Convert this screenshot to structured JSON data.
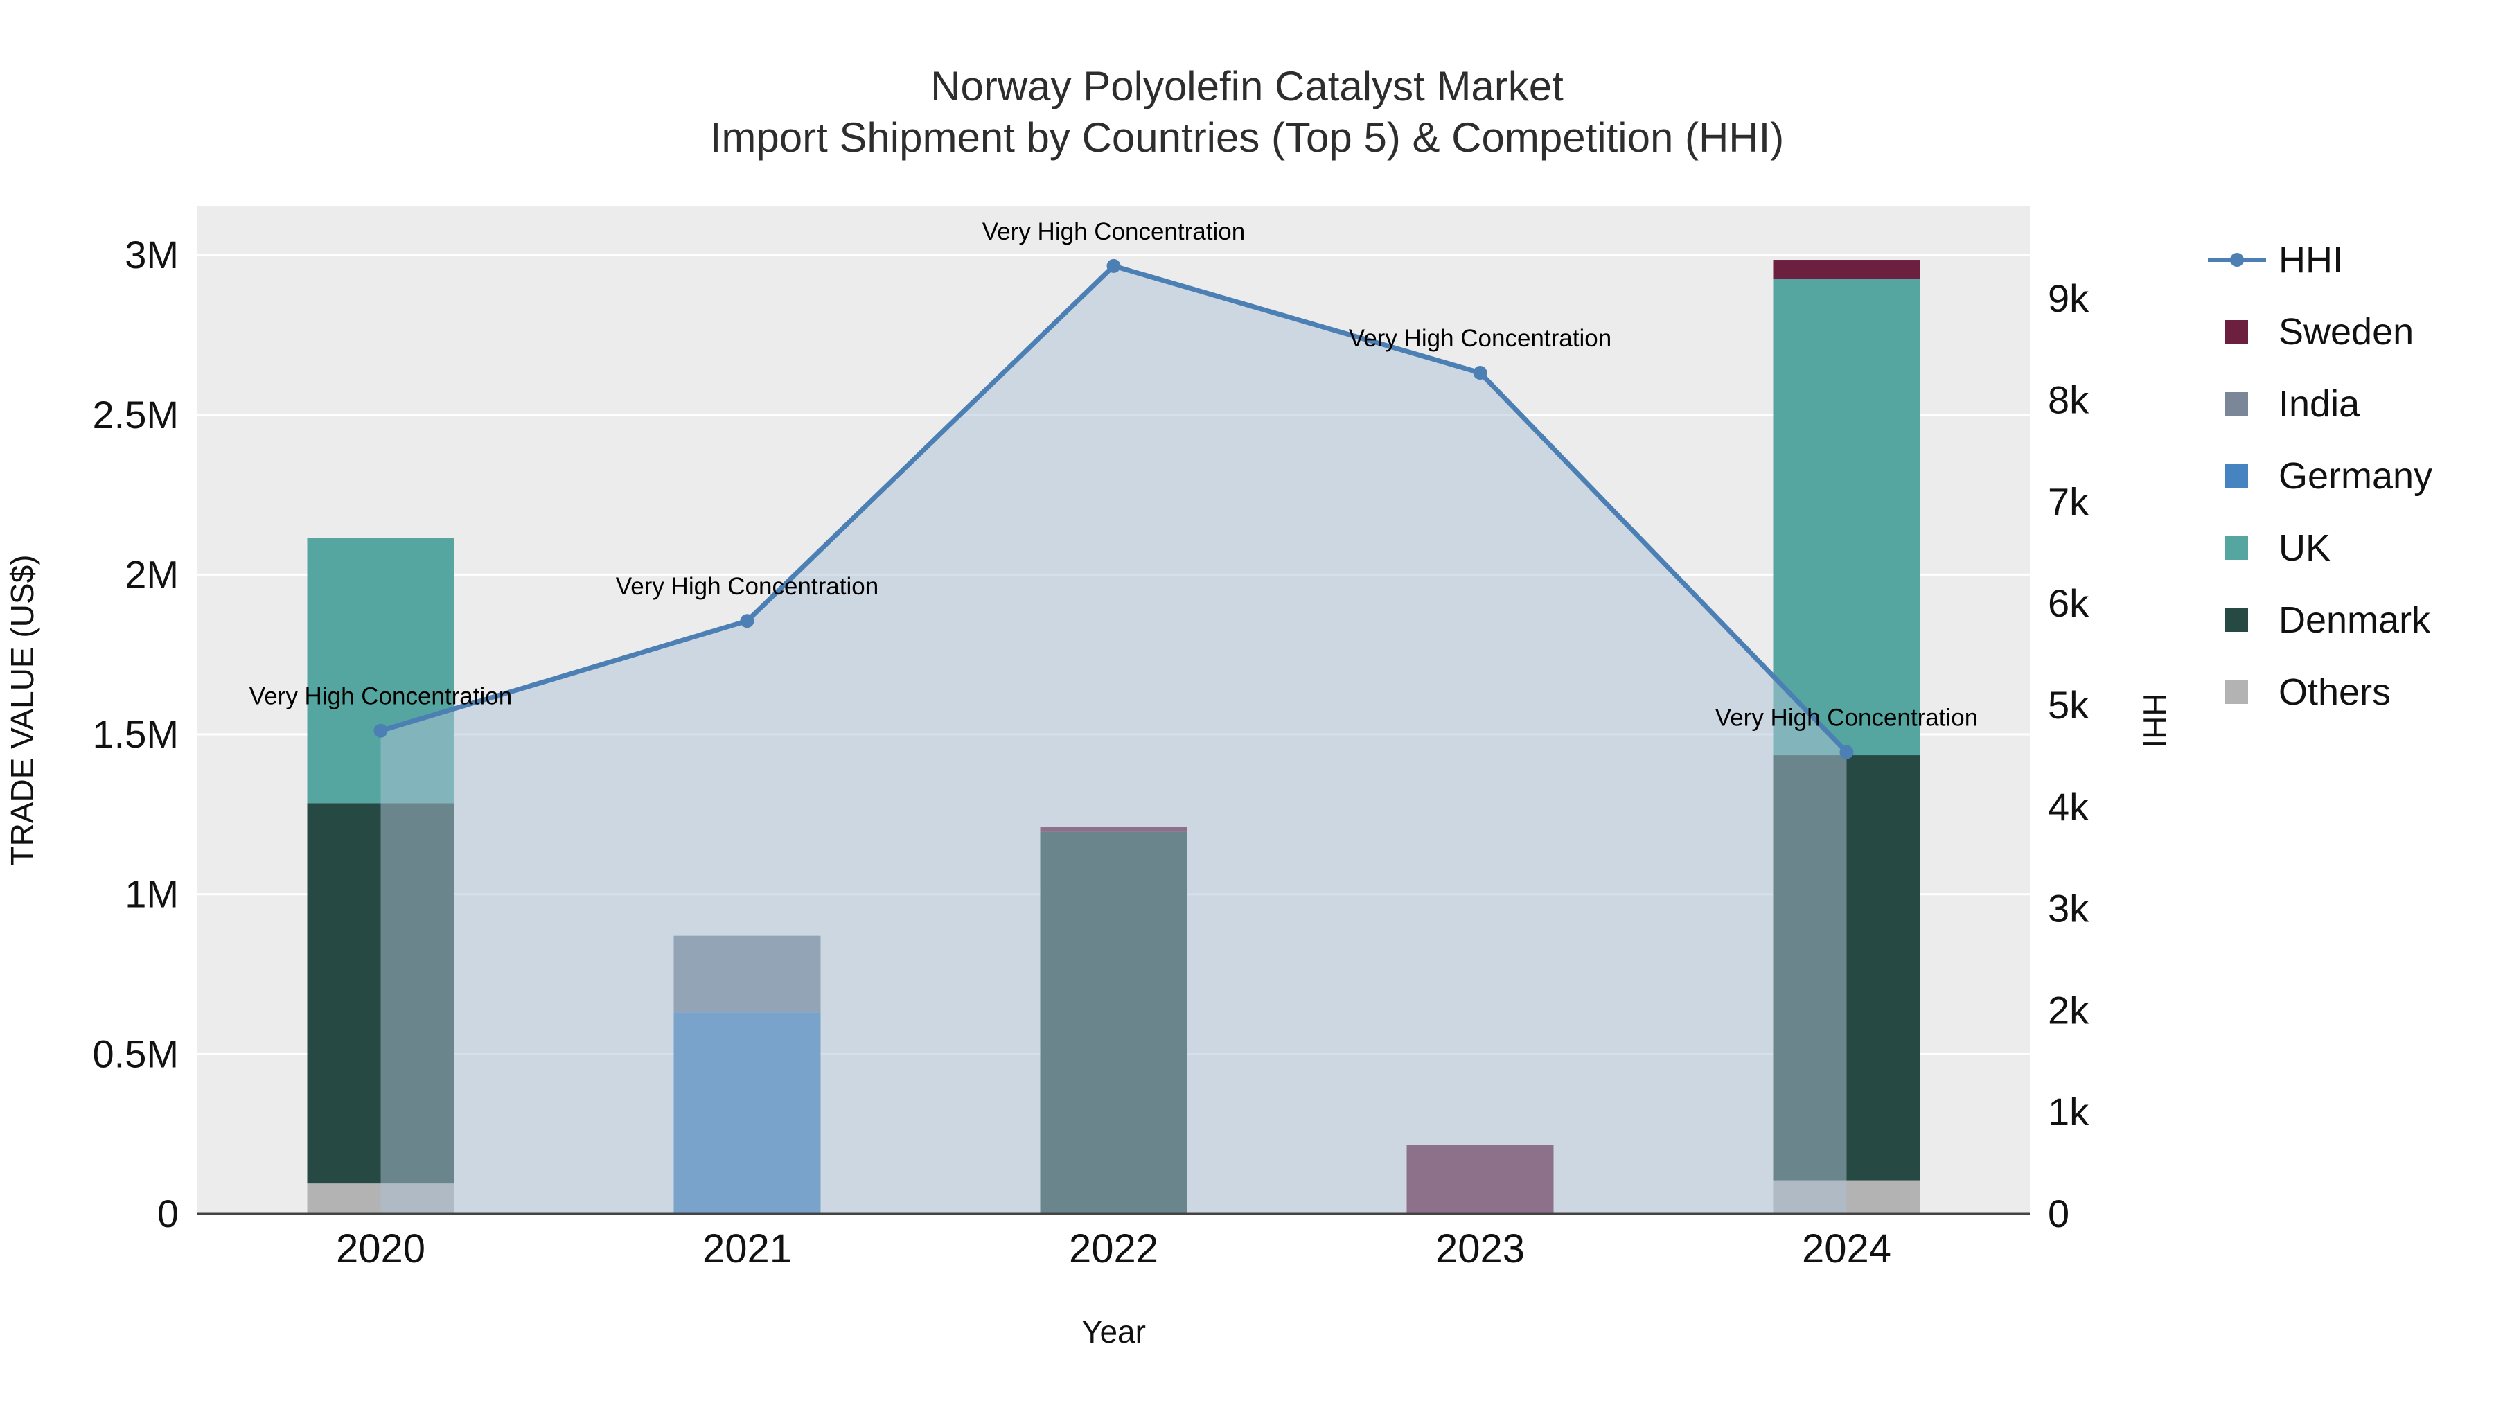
{
  "title": {
    "line1": "Norway Polyolefin Catalyst Market",
    "line2": "Import Shipment by Countries (Top 5) & Competition (HHI)"
  },
  "chart_data": {
    "type": "bar",
    "subtype": "stacked-bar-with-line-area-overlay",
    "categories": [
      "2020",
      "2021",
      "2022",
      "2023",
      "2024"
    ],
    "xlabel": "Year",
    "ylabel_left": "TRADE VALUE (US$)",
    "ylabel_right": "HHI",
    "yaxis_left": {
      "range": [
        0,
        3152000
      ],
      "tick_values": [
        0,
        500000,
        1000000,
        1500000,
        2000000,
        2500000,
        3000000
      ],
      "tick_labels": [
        "0",
        "0.5M",
        "1M",
        "1.5M",
        "2M",
        "2.5M",
        "3M"
      ]
    },
    "yaxis_right": {
      "range": [
        0,
        9905
      ],
      "tick_values": [
        0,
        1000,
        2000,
        3000,
        4000,
        5000,
        6000,
        7000,
        8000,
        9000
      ],
      "tick_labels": [
        "0",
        "1k",
        "2k",
        "3k",
        "4k",
        "5k",
        "6k",
        "7k",
        "8k",
        "9k"
      ]
    },
    "bar_series": [
      {
        "name": "Others",
        "color": "#b3b3b3",
        "values": [
          95000,
          0,
          0,
          0,
          105000
        ]
      },
      {
        "name": "Denmark",
        "color": "#264a43",
        "values": [
          1190000,
          0,
          1195000,
          0,
          1330000
        ]
      },
      {
        "name": "UK",
        "color": "#55a6a1",
        "values": [
          830000,
          0,
          0,
          0,
          1490000
        ]
      },
      {
        "name": "Germany",
        "color": "#4584c1",
        "values": [
          0,
          630000,
          0,
          0,
          0
        ]
      },
      {
        "name": "India",
        "color": "#7b8799",
        "values": [
          0,
          240000,
          0,
          0,
          0
        ]
      },
      {
        "name": "Sweden",
        "color": "#6c1f3e",
        "values": [
          0,
          0,
          15000,
          215000,
          60000
        ]
      }
    ],
    "line_series": {
      "name": "HHI",
      "color": "#4c80b4",
      "fill": "#aec2d6",
      "fill_opacity": 0.5,
      "values": [
        4750,
        5830,
        9320,
        8270,
        4540
      ]
    },
    "annotations": [
      {
        "category": "2020",
        "text": "Very High Concentration"
      },
      {
        "category": "2021",
        "text": "Very High Concentration"
      },
      {
        "category": "2022",
        "text": "Very High Concentration"
      },
      {
        "category": "2023",
        "text": "Very High Concentration"
      },
      {
        "category": "2024",
        "text": "Very High Concentration"
      }
    ]
  },
  "legend": {
    "items": [
      {
        "label": "HHI",
        "type": "line",
        "color": "#4c80b4"
      },
      {
        "label": "Sweden",
        "type": "square",
        "color": "#6c1f3e"
      },
      {
        "label": "India",
        "type": "square",
        "color": "#7b8799"
      },
      {
        "label": "Germany",
        "type": "square",
        "color": "#4584c1"
      },
      {
        "label": "UK",
        "type": "square",
        "color": "#55a6a1"
      },
      {
        "label": "Denmark",
        "type": "square",
        "color": "#264a43"
      },
      {
        "label": "Others",
        "type": "square",
        "color": "#b3b3b3"
      }
    ]
  },
  "colors": {
    "plot_bg": "#ececec",
    "grid": "#ffffff",
    "zero_line": "#444444",
    "axis_text": "#111111",
    "annotation_text": "#000000"
  }
}
